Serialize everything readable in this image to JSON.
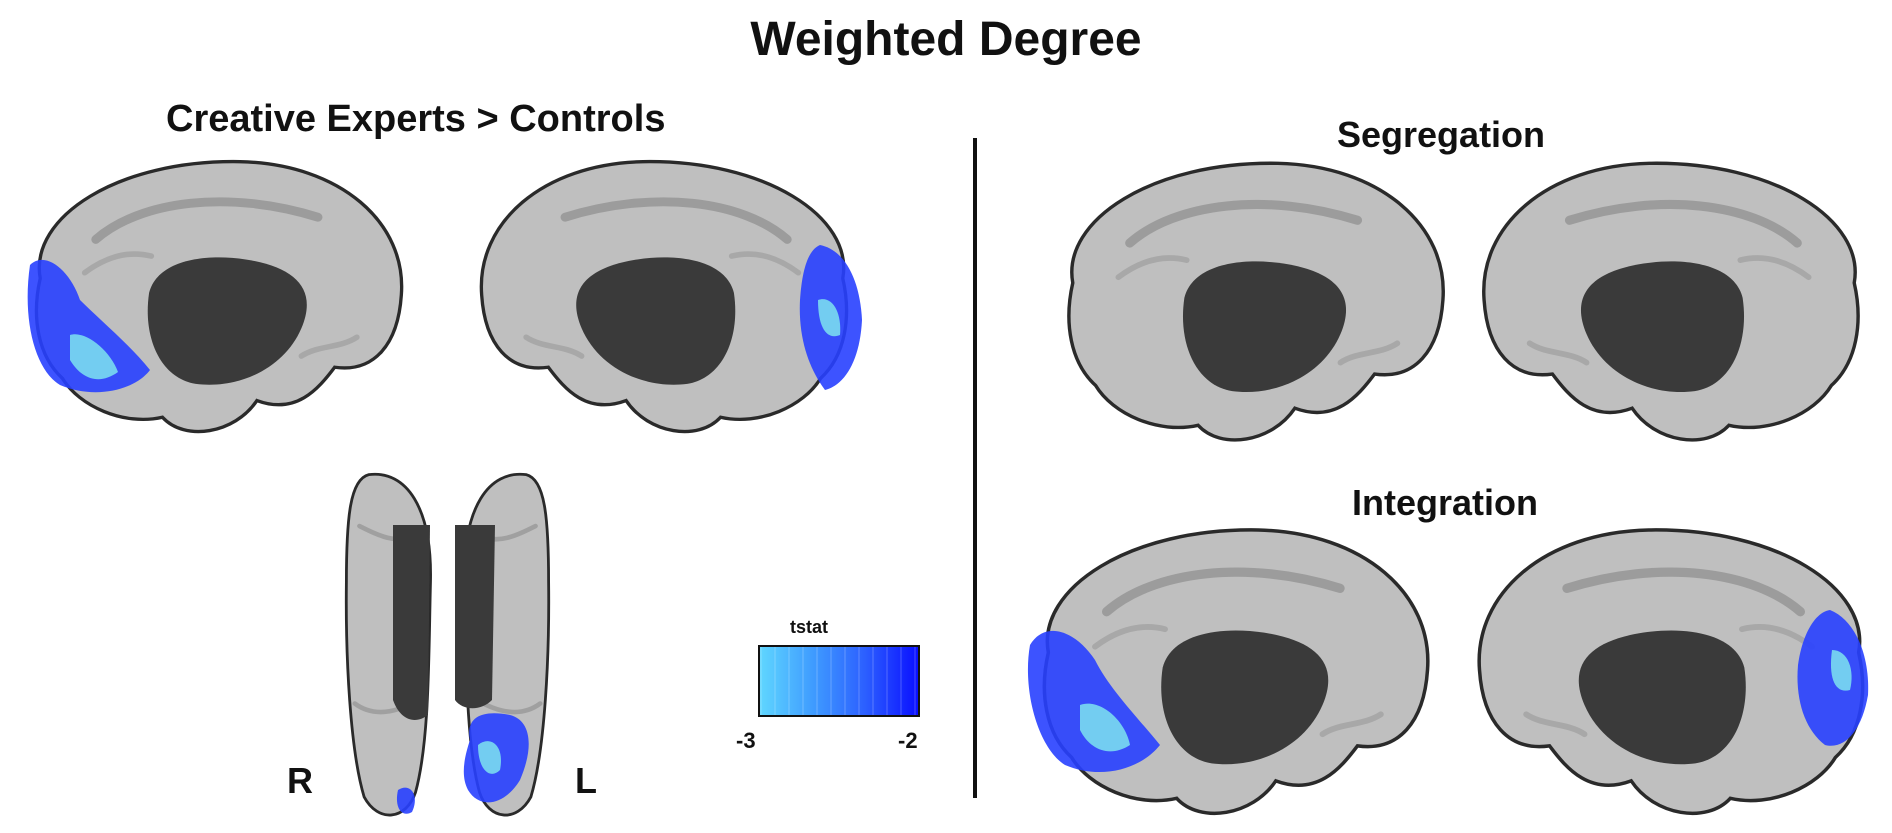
{
  "figure": {
    "title": "Weighted Degree",
    "left_panel": {
      "title": "Creative Experts > Controls",
      "orientation_labels": {
        "right": "R",
        "left": "L"
      }
    },
    "right_panel": {
      "top_title": "Segregation",
      "bottom_title": "Integration"
    },
    "colorbar": {
      "title": "tstat",
      "min_label": "-3",
      "max_label": "-2",
      "colors": [
        "#5fd6ff",
        "#3f9cff",
        "#2c5fff",
        "#0a10ff"
      ]
    },
    "colors": {
      "cortex": "#bfbfbf",
      "cortex_edge": "#2a2a2a",
      "medial_wall": "#3a3a3a",
      "blob_dark": "#2840ff",
      "blob_light": "#7ee4f0"
    }
  }
}
